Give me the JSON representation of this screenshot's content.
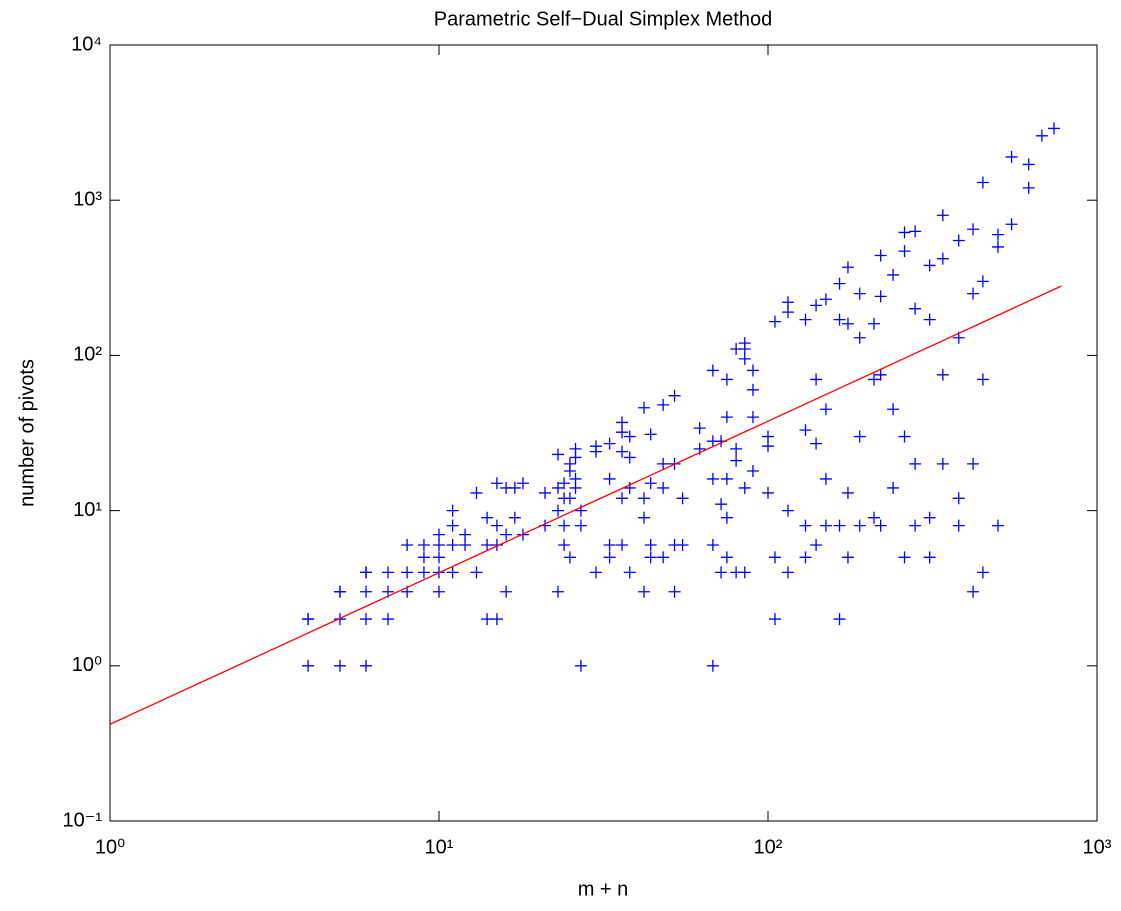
{
  "chart_data": {
    "type": "scatter",
    "title": "Parametric Self−Dual Simplex Method",
    "xlabel": "m + n",
    "ylabel": "number of pivots",
    "xscale": "log",
    "yscale": "log",
    "xlim": [
      1,
      1000
    ],
    "ylim": [
      0.1,
      10000
    ],
    "xticks": [
      {
        "value": 1,
        "label": "10⁰"
      },
      {
        "value": 10,
        "label": "10¹"
      },
      {
        "value": 100,
        "label": "10²"
      },
      {
        "value": 1000,
        "label": "10³"
      }
    ],
    "yticks": [
      {
        "value": 0.1,
        "label": "10⁻¹"
      },
      {
        "value": 1,
        "label": "10⁰"
      },
      {
        "value": 10,
        "label": "10¹"
      },
      {
        "value": 100,
        "label": "10²"
      },
      {
        "value": 1000,
        "label": "10³"
      },
      {
        "value": 10000,
        "label": "10⁴"
      }
    ],
    "series": [
      {
        "type": "scatter",
        "marker": "+",
        "color": "#0000ff",
        "x": [
          4,
          4,
          4,
          5,
          5,
          5,
          5,
          6,
          6,
          6,
          6,
          6,
          7,
          7,
          7,
          8,
          8,
          8,
          9,
          9,
          9,
          10,
          10,
          10,
          10,
          10,
          11,
          11,
          11,
          11,
          12,
          12,
          13,
          13,
          14,
          14,
          14,
          15,
          15,
          15,
          15,
          16,
          16,
          16,
          17,
          17,
          18,
          18,
          21,
          21,
          23,
          23,
          23,
          23,
          24,
          24,
          24,
          24,
          25,
          25,
          25,
          25,
          26,
          26,
          26,
          26,
          27,
          27,
          27,
          30,
          30,
          30,
          33,
          33,
          33,
          33,
          36,
          36,
          36,
          36,
          36,
          38,
          38,
          38,
          38,
          42,
          42,
          42,
          42,
          44,
          44,
          44,
          44,
          48,
          48,
          48,
          48,
          52,
          52,
          52,
          52,
          55,
          55,
          62,
          62,
          68,
          68,
          68,
          68,
          68,
          72,
          72,
          72,
          75,
          75,
          75,
          75,
          75,
          80,
          80,
          80,
          80,
          85,
          85,
          85,
          85,
          85,
          90,
          90,
          90,
          90,
          100,
          100,
          100,
          105,
          105,
          105,
          115,
          115,
          115,
          115,
          130,
          130,
          130,
          130,
          140,
          140,
          140,
          140,
          150,
          150,
          150,
          150,
          165,
          165,
          165,
          165,
          175,
          175,
          175,
          175,
          190,
          190,
          190,
          190,
          210,
          210,
          210,
          220,
          220,
          220,
          220,
          240,
          240,
          240,
          260,
          260,
          260,
          260,
          280,
          280,
          280,
          280,
          310,
          310,
          310,
          310,
          340,
          340,
          340,
          340,
          380,
          380,
          380,
          380,
          420,
          420,
          420,
          420,
          450,
          450,
          450,
          450,
          500,
          500,
          500,
          550,
          550,
          620,
          620,
          680,
          740
        ],
        "y": [
          1,
          2,
          2,
          1,
          2,
          3,
          3,
          1,
          2,
          3,
          4,
          4,
          2,
          3,
          4,
          3,
          4,
          6,
          4,
          5,
          6,
          3,
          4,
          5,
          6,
          7,
          4,
          6,
          8,
          10,
          6,
          7,
          4,
          13,
          2,
          6,
          9,
          2,
          6,
          8,
          15,
          3,
          7,
          14,
          9,
          14,
          7,
          15,
          8,
          13,
          3,
          10,
          23,
          14,
          12,
          15,
          8,
          6,
          5,
          12,
          18,
          20,
          14,
          16,
          25,
          22,
          8,
          10,
          1,
          4,
          24,
          26,
          5,
          6,
          16,
          27,
          6,
          12,
          24,
          37,
          32,
          4,
          14,
          22,
          30,
          3,
          12,
          9,
          46,
          5,
          6,
          15,
          31,
          14,
          20,
          5,
          48,
          3,
          6,
          20,
          55,
          6,
          12,
          25,
          34,
          16,
          28,
          80,
          6,
          1,
          4,
          11,
          28,
          9,
          16,
          40,
          70,
          5,
          4,
          21,
          25,
          110,
          4,
          14,
          110,
          120,
          95,
          18,
          40,
          60,
          80,
          13,
          30,
          26,
          2,
          5,
          165,
          4,
          10,
          190,
          220,
          5,
          8,
          33,
          170,
          6,
          27,
          70,
          210,
          16,
          45,
          8,
          230,
          2,
          8,
          170,
          290,
          5,
          13,
          370,
          160,
          8,
          30,
          130,
          250,
          9,
          70,
          160,
          8,
          75,
          240,
          440,
          14,
          45,
          330,
          5,
          30,
          470,
          620,
          8,
          20,
          630,
          200,
          5,
          9,
          170,
          380,
          20,
          75,
          420,
          800,
          12,
          8,
          130,
          550,
          3,
          20,
          250,
          650,
          4,
          70,
          300,
          1300,
          8,
          500,
          600,
          700,
          1900,
          1200,
          1700,
          2600,
          2900
        ]
      },
      {
        "type": "line",
        "color": "#ff0000",
        "x": [
          1,
          780
        ],
        "y": [
          0.42,
          280
        ]
      }
    ]
  }
}
